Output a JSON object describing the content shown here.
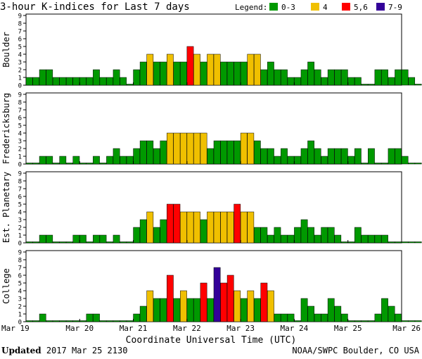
{
  "chart_data": {
    "type": "bar",
    "title": "3-hour K-indices for Last 7 days",
    "legend": {
      "label": "Legend:",
      "placement": "top-right",
      "entries": [
        {
          "label": "0-3",
          "color": "#009900"
        },
        {
          "label": "4",
          "color": "#f0c000"
        },
        {
          "label": "5,6",
          "color": "#ff0000"
        },
        {
          "label": "7-9",
          "color": "#330099"
        }
      ]
    },
    "xlabel": "Coordinate Universal Time (UTC)",
    "x_ticks": [
      "Mar 19",
      "Mar 20",
      "Mar 21",
      "Mar 22",
      "Mar 23",
      "Mar 24",
      "Mar 25",
      "Mar 26"
    ],
    "ylim": [
      0,
      9
    ],
    "y_ticks": [
      0,
      1,
      2,
      3,
      4,
      5,
      6,
      7,
      8,
      9
    ],
    "grid": false,
    "intervals_per_day": 8,
    "panels": [
      {
        "name": "Boulder",
        "values": [
          1,
          1,
          2,
          2,
          1,
          1,
          1,
          1,
          1,
          1,
          2,
          1,
          1,
          2,
          1,
          0,
          2,
          3,
          4,
          3,
          3,
          4,
          3,
          3,
          5,
          4,
          3,
          4,
          4,
          3,
          3,
          3,
          3,
          4,
          4,
          2,
          3,
          2,
          2,
          1,
          1,
          2,
          3,
          2,
          1,
          2,
          2,
          2,
          1,
          1,
          0,
          0,
          2,
          2,
          1,
          2,
          2,
          1,
          0,
          null
        ]
      },
      {
        "name": "Fredericksburg",
        "values": [
          0,
          0,
          1,
          1,
          0,
          1,
          0,
          1,
          0,
          0,
          1,
          0,
          1,
          2,
          1,
          1,
          2,
          3,
          3,
          2,
          3,
          4,
          4,
          4,
          4,
          4,
          4,
          2,
          3,
          3,
          3,
          3,
          4,
          4,
          3,
          2,
          2,
          1,
          2,
          1,
          1,
          2,
          3,
          2,
          1,
          2,
          2,
          2,
          1,
          2,
          0,
          2,
          0,
          0,
          2,
          2,
          1,
          0,
          0,
          null
        ]
      },
      {
        "name": "Est. Planetary",
        "values": [
          0,
          0,
          1,
          1,
          0,
          0,
          0,
          1,
          1,
          0,
          1,
          1,
          0,
          1,
          0,
          0,
          2,
          3,
          4,
          2,
          3,
          5,
          5,
          4,
          4,
          4,
          3,
          4,
          4,
          4,
          4,
          5,
          4,
          4,
          2,
          2,
          1,
          2,
          1,
          1,
          2,
          3,
          2,
          1,
          2,
          2,
          1,
          0,
          0,
          2,
          1,
          1,
          1,
          1,
          0,
          0,
          0,
          0,
          0,
          null
        ]
      },
      {
        "name": "College",
        "values": [
          0,
          0,
          1,
          0,
          0,
          0,
          0,
          0,
          0,
          1,
          1,
          0,
          0,
          0,
          0,
          0,
          1,
          2,
          4,
          3,
          3,
          6,
          3,
          4,
          3,
          3,
          5,
          3,
          7,
          5,
          6,
          4,
          3,
          4,
          3,
          5,
          4,
          1,
          1,
          1,
          0,
          3,
          2,
          1,
          1,
          3,
          2,
          1,
          0,
          0,
          0,
          0,
          1,
          3,
          2,
          1,
          0,
          0,
          0,
          null
        ]
      }
    ]
  },
  "footer": {
    "updated_label": "Updated",
    "updated_value": "2017 Mar 25 2130",
    "source": "NOAA/SWPC Boulder, CO USA"
  }
}
